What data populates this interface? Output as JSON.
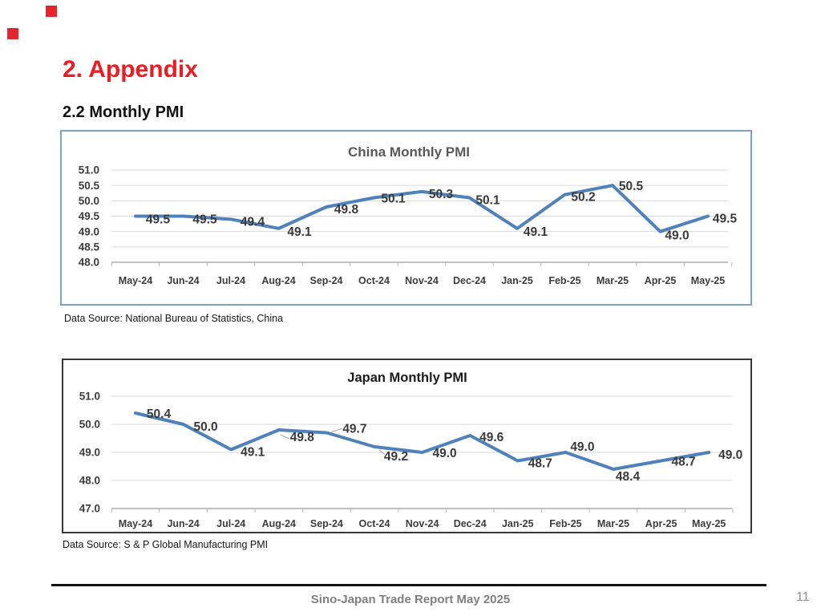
{
  "page": {
    "heading": "2. Appendix",
    "subheading": "2.2 Monthly PMI",
    "heading_color": "#ec1c24",
    "decor_color": "#e5242c"
  },
  "china_section": {
    "source_note": "Data Source: National Bureau of Statistics, China"
  },
  "japan_section": {
    "source_note": "Data Source: S & P Global Manufacturing PMI"
  },
  "footer": {
    "report_title": "Sino-Japan Trade Report May 2025",
    "page_number": "11"
  },
  "chart_data": [
    {
      "id": "china",
      "type": "line",
      "title": "China Monthly PMI",
      "categories": [
        "May-24",
        "Jun-24",
        "Jul-24",
        "Aug-24",
        "Sep-24",
        "Oct-24",
        "Nov-24",
        "Dec-24",
        "Jan-25",
        "Feb-25",
        "Mar-25",
        "Apr-25",
        "May-25"
      ],
      "values": [
        49.5,
        49.5,
        49.4,
        49.1,
        49.8,
        50.1,
        50.3,
        50.1,
        49.1,
        50.2,
        50.5,
        49.0,
        49.5
      ],
      "ylim": [
        48.0,
        51.0
      ],
      "yticks": [
        51.0,
        50.5,
        50.0,
        49.5,
        49.0,
        48.5,
        48.0
      ],
      "xlabel": "",
      "ylabel": "",
      "grid": true,
      "legend": "none",
      "data_labels": true,
      "line_color": "#4f81bd",
      "title_color": "#595959"
    },
    {
      "id": "japan",
      "type": "line",
      "title": "Japan Monthly PMI",
      "categories": [
        "May-24",
        "Jun-24",
        "Jul-24",
        "Aug-24",
        "Sep-24",
        "Oct-24",
        "Nov-24",
        "Dec-24",
        "Jan-25",
        "Feb-25",
        "Mar-25",
        "Apr-25",
        "May-25"
      ],
      "values": [
        50.4,
        50.0,
        49.1,
        49.8,
        49.7,
        49.2,
        49.0,
        49.6,
        48.7,
        49.0,
        48.4,
        48.7,
        49.0
      ],
      "ylim": [
        47.0,
        51.0
      ],
      "yticks": [
        51.0,
        50.0,
        49.0,
        48.0,
        47.0
      ],
      "xlabel": "",
      "ylabel": "",
      "grid": true,
      "legend": "none",
      "data_labels": true,
      "line_color": "#4f81bd",
      "title_color": "#1c1c1c"
    }
  ]
}
